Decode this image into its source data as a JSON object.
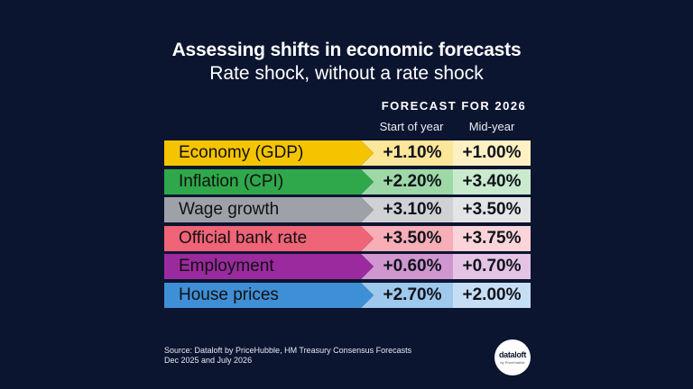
{
  "title": "Assessing shifts in economic forecasts",
  "subtitle": "Rate shock, without a rate shock",
  "chart_data": {
    "type": "table",
    "group_header": "FORECAST FOR 2026",
    "columns": [
      "Start of year",
      "Mid-year"
    ],
    "rows": [
      {
        "label": "Economy (GDP)",
        "start": "+1.10%",
        "mid": "+1.00%",
        "color": "#f5c400",
        "start_bg": "#fbe699",
        "mid_bg": "#fdf0c2",
        "text_color": "#111111"
      },
      {
        "label": "Inflation (CPI)",
        "start": "+2.20%",
        "mid": "+3.40%",
        "color": "#2ea84a",
        "start_bg": "#9ed8a6",
        "mid_bg": "#c9eacd",
        "text_color": "#111111"
      },
      {
        "label": "Wage growth",
        "start": "+3.10%",
        "mid": "+3.50%",
        "color": "#9ea2a8",
        "start_bg": "#cfd1d4",
        "mid_bg": "#e3e4e6",
        "text_color": "#111111"
      },
      {
        "label": "Official bank rate",
        "start": "+3.50%",
        "mid": "+3.75%",
        "color": "#f06477",
        "start_bg": "#f7aeb7",
        "mid_bg": "#fbd4d9",
        "text_color": "#111111"
      },
      {
        "label": "Employment",
        "start": "+0.60%",
        "mid": "+0.70%",
        "color": "#9a2a9e",
        "start_bg": "#cf96d0",
        "mid_bg": "#e4c3e4",
        "text_color": "#111111"
      },
      {
        "label": "House prices",
        "start": "+2.70%",
        "mid": "+2.00%",
        "color": "#3f8fd6",
        "start_bg": "#9ec8ec",
        "mid_bg": "#c6def3",
        "text_color": "#111111"
      }
    ]
  },
  "source": {
    "line1": "Source: Dataloft by PriceHubble, HM Treasury Consensus Forecasts",
    "line2": "Dec 2025 and July 2026"
  },
  "logo": {
    "main": "dataloft",
    "sub": "by PriceHubble"
  }
}
